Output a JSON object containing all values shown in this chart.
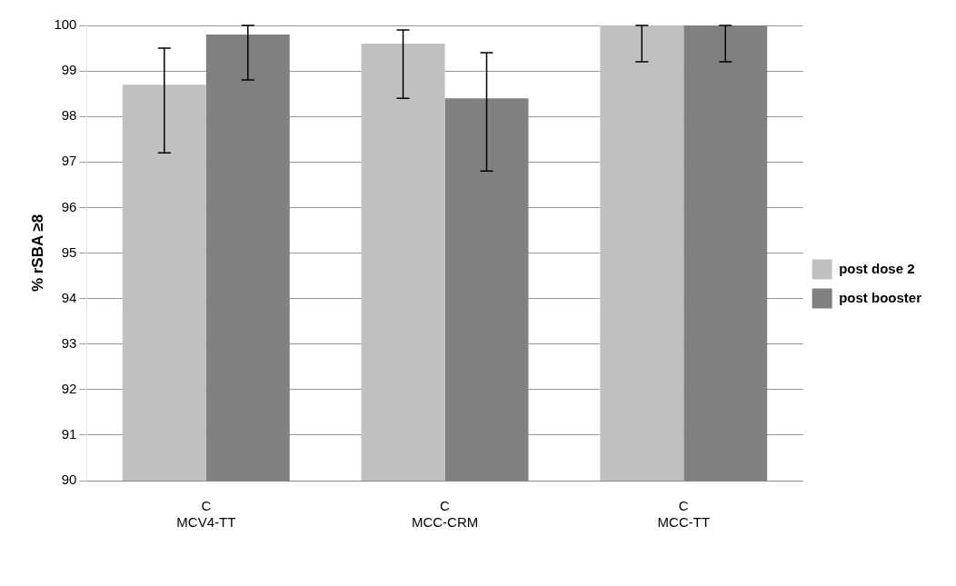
{
  "chart_data": {
    "type": "bar",
    "ylabel": "% rSBA ≥8",
    "categories": [
      "C\nMCV4-TT",
      "C\nMCC-CRM",
      "C\nMCC-TT"
    ],
    "series": [
      {
        "name": "post dose 2",
        "color": "#c0c0c0",
        "values": [
          98.7,
          99.6,
          100
        ],
        "errors": [
          [
            97.2,
            99.5
          ],
          [
            98.4,
            99.9
          ],
          [
            99.2,
            100
          ]
        ]
      },
      {
        "name": "post booster",
        "color": "#808080",
        "values": [
          99.8,
          98.4,
          100
        ],
        "errors": [
          [
            98.8,
            100
          ],
          [
            96.8,
            99.4
          ],
          [
            99.2,
            100
          ]
        ]
      }
    ],
    "ylim": [
      90,
      100
    ],
    "yticks": [
      90,
      91,
      92,
      93,
      94,
      95,
      96,
      97,
      98,
      99,
      100
    ],
    "grid": "y",
    "legend": "right"
  }
}
